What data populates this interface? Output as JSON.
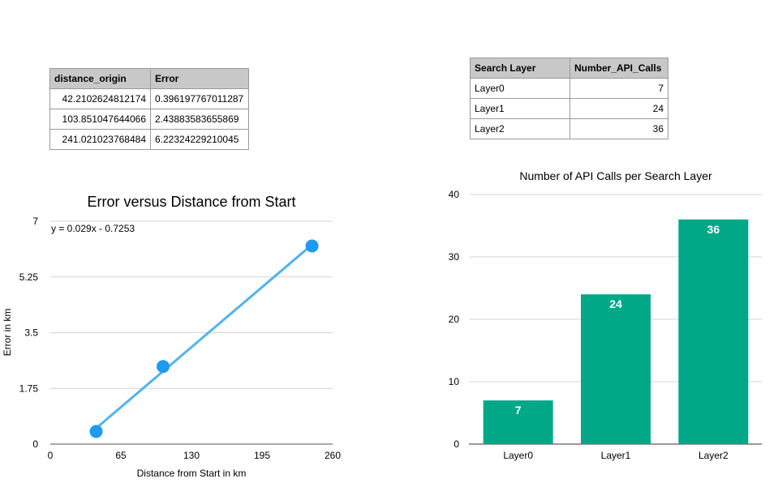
{
  "table1": {
    "headers": [
      "distance_origin",
      "Error"
    ],
    "rows": [
      [
        "42.2102624812174",
        "0.396197767011287"
      ],
      [
        "103.851047644066",
        "2.43883583655869"
      ],
      [
        "241.021023768484",
        "6.22324229210045"
      ]
    ]
  },
  "table2": {
    "headers": [
      "Search Layer",
      "Number_API_Calls"
    ],
    "rows": [
      [
        "Layer0",
        "7"
      ],
      [
        "Layer1",
        "24"
      ],
      [
        "Layer2",
        "36"
      ]
    ]
  },
  "chart_data": [
    {
      "type": "scatter",
      "title": "Error versus Distance from Start",
      "xlabel": "Distance from Start in km",
      "ylabel": "Error in km",
      "xlim": [
        0,
        260
      ],
      "ylim": [
        0,
        7
      ],
      "xticks": [
        "0",
        "65",
        "130",
        "195",
        "260"
      ],
      "yticks": [
        "0",
        "1.75",
        "3.5",
        "5.25",
        "7"
      ],
      "x": [
        42.2102624812174,
        103.851047644066,
        241.021023768484
      ],
      "y": [
        0.396197767011287,
        2.43883583655869,
        6.22324229210045
      ],
      "trendline": {
        "label": "y = 0.029x - 0.7253",
        "slope": 0.029,
        "intercept": -0.7253
      },
      "grid": true,
      "colors": {
        "points": "#1e9bf0",
        "line": "#50b4ec"
      }
    },
    {
      "type": "bar",
      "title": "Number of API Calls per Search Layer",
      "categories": [
        "Layer0",
        "Layer1",
        "Layer2"
      ],
      "values": [
        7,
        24,
        36
      ],
      "ylim": [
        0,
        40
      ],
      "yticks": [
        "0",
        "10",
        "20",
        "30",
        "40"
      ],
      "grid": true,
      "colors": {
        "bars": "#00a887"
      }
    }
  ]
}
